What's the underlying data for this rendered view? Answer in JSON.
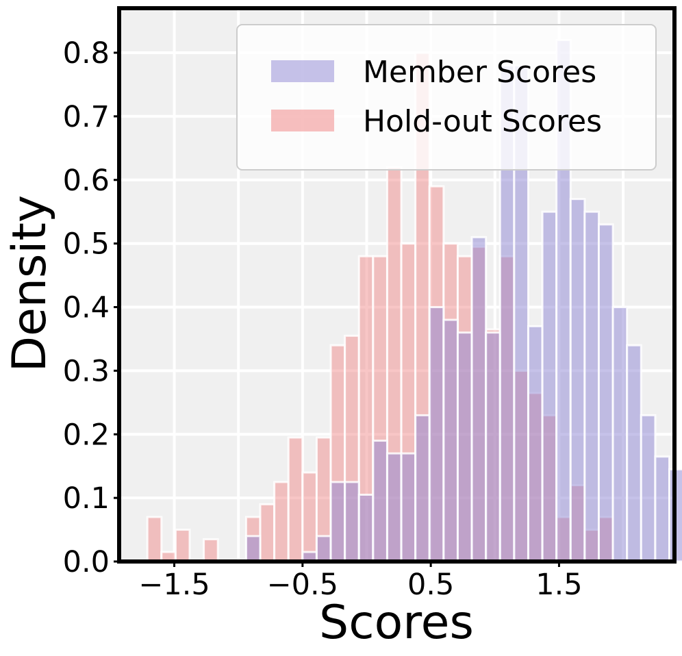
{
  "chart_data": {
    "type": "bar",
    "subtype": "histogram",
    "title": "",
    "xlabel": "Scores",
    "ylabel": "Density",
    "xlim": [
      -1.93,
      2.4
    ],
    "ylim": [
      0,
      0.87
    ],
    "bin_width": 0.11,
    "x_ticks": [
      {
        "value": -1.5,
        "label": "−1.5"
      },
      {
        "value": -0.5,
        "label": "−0.5"
      },
      {
        "value": 0.5,
        "label": "0.5"
      },
      {
        "value": 1.5,
        "label": "1.5"
      }
    ],
    "y_ticks": [
      {
        "value": 0.0,
        "label": "0.0"
      },
      {
        "value": 0.1,
        "label": "0.1"
      },
      {
        "value": 0.2,
        "label": "0.2"
      },
      {
        "value": 0.3,
        "label": "0.3"
      },
      {
        "value": 0.4,
        "label": "0.4"
      },
      {
        "value": 0.5,
        "label": "0.5"
      },
      {
        "value": 0.6,
        "label": "0.6"
      },
      {
        "value": 0.7,
        "label": "0.7"
      },
      {
        "value": 0.8,
        "label": "0.8"
      }
    ],
    "grid": true,
    "legend_position": "top-right",
    "series": [
      {
        "name": "Hold-out Scores",
        "color": "#F08080",
        "opacity": 0.45,
        "bins": [
          {
            "x": -1.71,
            "value": 0.07
          },
          {
            "x": -1.6,
            "value": 0.015
          },
          {
            "x": -1.49,
            "value": 0.05
          },
          {
            "x": -1.27,
            "value": 0.035
          },
          {
            "x": -0.94,
            "value": 0.07
          },
          {
            "x": -0.83,
            "value": 0.09
          },
          {
            "x": -0.72,
            "value": 0.125
          },
          {
            "x": -0.61,
            "value": 0.195
          },
          {
            "x": -0.5,
            "value": 0.14
          },
          {
            "x": -0.39,
            "value": 0.195
          },
          {
            "x": -0.28,
            "value": 0.34
          },
          {
            "x": -0.17,
            "value": 0.355
          },
          {
            "x": -0.06,
            "value": 0.48
          },
          {
            "x": 0.05,
            "value": 0.48
          },
          {
            "x": 0.16,
            "value": 0.62
          },
          {
            "x": 0.27,
            "value": 0.5
          },
          {
            "x": 0.38,
            "value": 0.8
          },
          {
            "x": 0.49,
            "value": 0.59
          },
          {
            "x": 0.6,
            "value": 0.5
          },
          {
            "x": 0.71,
            "value": 0.48
          },
          {
            "x": 0.82,
            "value": 0.495
          },
          {
            "x": 0.93,
            "value": 0.365
          },
          {
            "x": 1.04,
            "value": 0.48
          },
          {
            "x": 1.15,
            "value": 0.3
          },
          {
            "x": 1.26,
            "value": 0.265
          },
          {
            "x": 1.37,
            "value": 0.23
          },
          {
            "x": 1.48,
            "value": 0.07
          },
          {
            "x": 1.59,
            "value": 0.12
          },
          {
            "x": 1.7,
            "value": 0.05
          },
          {
            "x": 1.81,
            "value": 0.07
          }
        ]
      },
      {
        "name": "Member Scores",
        "color": "#8E86D4",
        "opacity": 0.5,
        "bins": [
          {
            "x": -0.94,
            "value": 0.04
          },
          {
            "x": -0.5,
            "value": 0.015
          },
          {
            "x": -0.39,
            "value": 0.04
          },
          {
            "x": -0.28,
            "value": 0.125
          },
          {
            "x": -0.17,
            "value": 0.125
          },
          {
            "x": -0.06,
            "value": 0.105
          },
          {
            "x": 0.05,
            "value": 0.19
          },
          {
            "x": 0.16,
            "value": 0.17
          },
          {
            "x": 0.27,
            "value": 0.17
          },
          {
            "x": 0.38,
            "value": 0.23
          },
          {
            "x": 0.49,
            "value": 0.4
          },
          {
            "x": 0.6,
            "value": 0.38
          },
          {
            "x": 0.71,
            "value": 0.36
          },
          {
            "x": 0.82,
            "value": 0.51
          },
          {
            "x": 0.93,
            "value": 0.36
          },
          {
            "x": 1.04,
            "value": 0.78
          },
          {
            "x": 1.15,
            "value": 0.78
          },
          {
            "x": 1.26,
            "value": 0.37
          },
          {
            "x": 1.37,
            "value": 0.55
          },
          {
            "x": 1.48,
            "value": 0.82
          },
          {
            "x": 1.59,
            "value": 0.57
          },
          {
            "x": 1.7,
            "value": 0.55
          },
          {
            "x": 1.81,
            "value": 0.53
          },
          {
            "x": 1.92,
            "value": 0.4
          },
          {
            "x": 2.03,
            "value": 0.34
          },
          {
            "x": 2.14,
            "value": 0.23
          },
          {
            "x": 2.25,
            "value": 0.165
          },
          {
            "x": 2.36,
            "value": 0.145
          }
        ]
      }
    ],
    "legend": [
      {
        "name": "Member Scores",
        "color": "#8E86D4"
      },
      {
        "name": "Hold-out Scores",
        "color": "#F08080"
      }
    ]
  }
}
